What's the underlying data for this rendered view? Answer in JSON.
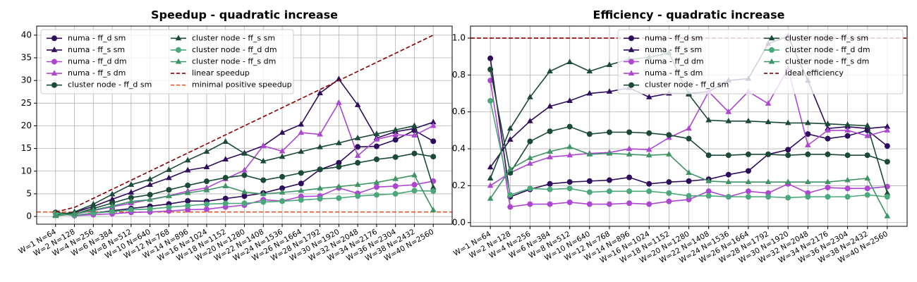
{
  "chart_data": [
    {
      "type": "line",
      "title": "Speedup - quadratic increase",
      "categories": [
        "W=1 N=64",
        "W=2 N=128",
        "W=4 N=256",
        "W=6 N=384",
        "W=8 N=512",
        "W=10 N=640",
        "W=12 N=768",
        "W=14 N=896",
        "W=16 N=1024",
        "W=18 N=1152",
        "W=20 N=1280",
        "W=22 N=1408",
        "W=24 N=1536",
        "W=26 N=1664",
        "W=28 N=1792",
        "W=30 N=1920",
        "W=32 N=2048",
        "W=34 N=2176",
        "W=36 N=2304",
        "W=38 N=2432",
        "W=40 N=2560"
      ],
      "ylim": [
        -1.7,
        42
      ],
      "yticks": [
        0,
        5,
        10,
        15,
        20,
        25,
        30,
        35,
        40
      ],
      "grid": true,
      "legend": "upper left",
      "legend_columns": 2,
      "series": [
        {
          "name": "numa - ff_d sm",
          "color": "#2e0d5c",
          "marker": "circle",
          "values": [
            0.89,
            0.28,
            0.72,
            1.26,
            1.76,
            2.25,
            2.76,
            3.43,
            3.36,
            3.96,
            4.5,
            5.17,
            6.24,
            7.28,
            10.36,
            11.85,
            15.36,
            15.47,
            16.92,
            19,
            16.6
          ]
        },
        {
          "name": "numa - ff_s sm",
          "color": "#2e0d5c",
          "marker": "triangle",
          "values": [
            0.3,
            0.9,
            2.2,
            3.8,
            5.3,
            7.0,
            8.5,
            10.2,
            10.9,
            12.6,
            14.0,
            15.6,
            18.5,
            20.3,
            27.2,
            30.3,
            24.6,
            17.3,
            18.7,
            19.4,
            20.8
          ]
        },
        {
          "name": "numa - ff_d dm",
          "color": "#ad47d1",
          "marker": "circle",
          "values": [
            0.77,
            0.17,
            0.4,
            0.6,
            0.9,
            1.0,
            1.2,
            1.5,
            1.6,
            2.1,
            2.5,
            3.7,
            3.4,
            4.4,
            4.5,
            6.3,
            5.1,
            6.5,
            6.7,
            7.0,
            7.8
          ]
        },
        {
          "name": "numa - ff_s dm",
          "color": "#ad47d1",
          "marker": "triangle",
          "values": [
            0.2,
            0.54,
            1.28,
            2.13,
            2.92,
            3.75,
            4.56,
            5.6,
            6.32,
            8.28,
            10.2,
            15.6,
            14.4,
            18.5,
            18.1,
            25.1,
            13.4,
            17,
            18,
            17.9,
            20
          ]
        },
        {
          "name": "cluster node - ff_d sm",
          "color": "#1b4a36",
          "marker": "circle",
          "values": [
            0.83,
            0.54,
            1.76,
            2.97,
            4.16,
            4.8,
            5.88,
            6.86,
            7.76,
            8.55,
            9.1,
            8.0,
            8.76,
            9.6,
            10.4,
            10.95,
            11.84,
            12.6,
            13.1,
            13.9,
            13.2
          ]
        },
        {
          "name": "cluster node - ff_s sm",
          "color": "#1b4a36",
          "marker": "triangle",
          "values": [
            0.24,
            1.0,
            2.7,
            4.9,
            7.0,
            8.2,
            10.3,
            12.4,
            14.3,
            16.5,
            13.9,
            12.2,
            13.2,
            14.3,
            15.3,
            16.2,
            17.3,
            18.2,
            19.1,
            20,
            6.4
          ]
        },
        {
          "name": "cluster node - ff_d dm",
          "color": "#4aa87a",
          "marker": "circle",
          "values": [
            0.66,
            0.3,
            0.74,
            1.08,
            1.48,
            1.65,
            2.04,
            2.38,
            2.72,
            2.88,
            2.9,
            3.2,
            3.36,
            3.64,
            3.9,
            4.05,
            4.5,
            4.76,
            5.0,
            5.7,
            5.6
          ]
        },
        {
          "name": "cluster node - ff_s dm",
          "color": "#3f9466",
          "marker": "triangle",
          "values": [
            0.13,
            0.58,
            1.4,
            2.3,
            3.3,
            3.7,
            4.5,
            5.2,
            5.8,
            6.7,
            5.4,
            4.95,
            5.3,
            5.7,
            6.2,
            6.6,
            7.0,
            7.5,
            8.3,
            9.1,
            1.4
          ]
        },
        {
          "name": "linear speedup",
          "color": "#8b0000",
          "marker": "none",
          "linestyle": "dashed",
          "values": [
            1,
            2,
            4,
            6,
            8,
            10,
            12,
            14,
            16,
            18,
            20,
            22,
            24,
            26,
            28,
            30,
            32,
            34,
            36,
            38,
            40
          ]
        }
      ],
      "hlines": [
        {
          "name": "minimal positive speedup",
          "color": "#e4562b",
          "value": 1
        }
      ]
    },
    {
      "type": "line",
      "title": "Efficiency - quadratic increase",
      "categories": [
        "W=1 N=64",
        "W=2 N=128",
        "W=4 N=256",
        "W=6 N=384",
        "W=8 N=512",
        "W=10 N=640",
        "W=12 N=768",
        "W=14 N=896",
        "W=16 N=1024",
        "W=18 N=1152",
        "W=20 N=1280",
        "W=22 N=1408",
        "W=24 N=1536",
        "W=26 N=1664",
        "W=28 N=1792",
        "W=30 N=1920",
        "W=32 N=2048",
        "W=34 N=2176",
        "W=36 N=2304",
        "W=38 N=2432",
        "W=40 N=2560"
      ],
      "ylim": [
        -0.02,
        1.065
      ],
      "yticks": [
        {
          "value": 0,
          "label": "0.0"
        },
        0.2,
        0.4,
        0.6,
        0.8,
        {
          "value": 1,
          "label": "1.0"
        }
      ],
      "grid": true,
      "legend": "upper right",
      "legend_columns": 2,
      "series": [
        {
          "name": "numa - ff_d sm",
          "color": "#2e0d5c",
          "marker": "circle",
          "values": [
            0.89,
            0.14,
            0.18,
            0.21,
            0.22,
            0.225,
            0.23,
            0.245,
            0.21,
            0.22,
            0.225,
            0.235,
            0.26,
            0.28,
            0.37,
            0.395,
            0.48,
            0.455,
            0.47,
            0.5,
            0.415
          ]
        },
        {
          "name": "numa - ff_s sm",
          "color": "#2e0d5c",
          "marker": "triangle",
          "values": [
            0.3,
            0.45,
            0.55,
            0.63,
            0.66,
            0.7,
            0.71,
            0.73,
            0.68,
            0.7,
            0.7,
            0.71,
            0.77,
            0.78,
            0.97,
            1.01,
            0.77,
            0.51,
            0.52,
            0.51,
            0.52
          ]
        },
        {
          "name": "numa - ff_d dm",
          "color": "#ad47d1",
          "marker": "circle",
          "values": [
            0.77,
            0.085,
            0.1,
            0.1,
            0.11,
            0.1,
            0.1,
            0.105,
            0.1,
            0.115,
            0.125,
            0.17,
            0.14,
            0.17,
            0.16,
            0.21,
            0.16,
            0.19,
            0.185,
            0.185,
            0.195
          ]
        },
        {
          "name": "numa - ff_s dm",
          "color": "#ad47d1",
          "marker": "triangle",
          "values": [
            0.2,
            0.27,
            0.32,
            0.355,
            0.365,
            0.375,
            0.38,
            0.4,
            0.395,
            0.46,
            0.51,
            0.71,
            0.6,
            0.71,
            0.645,
            0.835,
            0.42,
            0.5,
            0.5,
            0.47,
            0.5
          ]
        },
        {
          "name": "cluster node - ff_d sm",
          "color": "#1b4a36",
          "marker": "circle",
          "values": [
            0.83,
            0.27,
            0.44,
            0.495,
            0.52,
            0.48,
            0.49,
            0.49,
            0.485,
            0.475,
            0.455,
            0.365,
            0.365,
            0.37,
            0.37,
            0.365,
            0.37,
            0.37,
            0.365,
            0.365,
            0.33
          ]
        },
        {
          "name": "cluster node - ff_s sm",
          "color": "#1b4a36",
          "marker": "triangle",
          "values": [
            0.24,
            0.51,
            0.68,
            0.82,
            0.87,
            0.82,
            0.855,
            0.885,
            0.895,
            0.92,
            0.695,
            0.555,
            0.55,
            0.55,
            0.545,
            0.54,
            0.54,
            0.535,
            0.53,
            0.525,
            0.16
          ]
        },
        {
          "name": "cluster node - ff_d dm",
          "color": "#4aa87a",
          "marker": "circle",
          "values": [
            0.66,
            0.15,
            0.185,
            0.18,
            0.185,
            0.165,
            0.17,
            0.17,
            0.17,
            0.16,
            0.145,
            0.145,
            0.14,
            0.14,
            0.14,
            0.135,
            0.14,
            0.14,
            0.14,
            0.15,
            0.14
          ]
        },
        {
          "name": "cluster node - ff_s dm",
          "color": "#3f9466",
          "marker": "triangle",
          "values": [
            0.13,
            0.29,
            0.35,
            0.385,
            0.41,
            0.37,
            0.375,
            0.37,
            0.365,
            0.37,
            0.27,
            0.225,
            0.22,
            0.22,
            0.22,
            0.22,
            0.22,
            0.22,
            0.23,
            0.24,
            0.035
          ]
        }
      ],
      "hlines": [
        {
          "name": "ideal efficiency",
          "color": "#8b0000",
          "value": 1
        }
      ]
    }
  ]
}
